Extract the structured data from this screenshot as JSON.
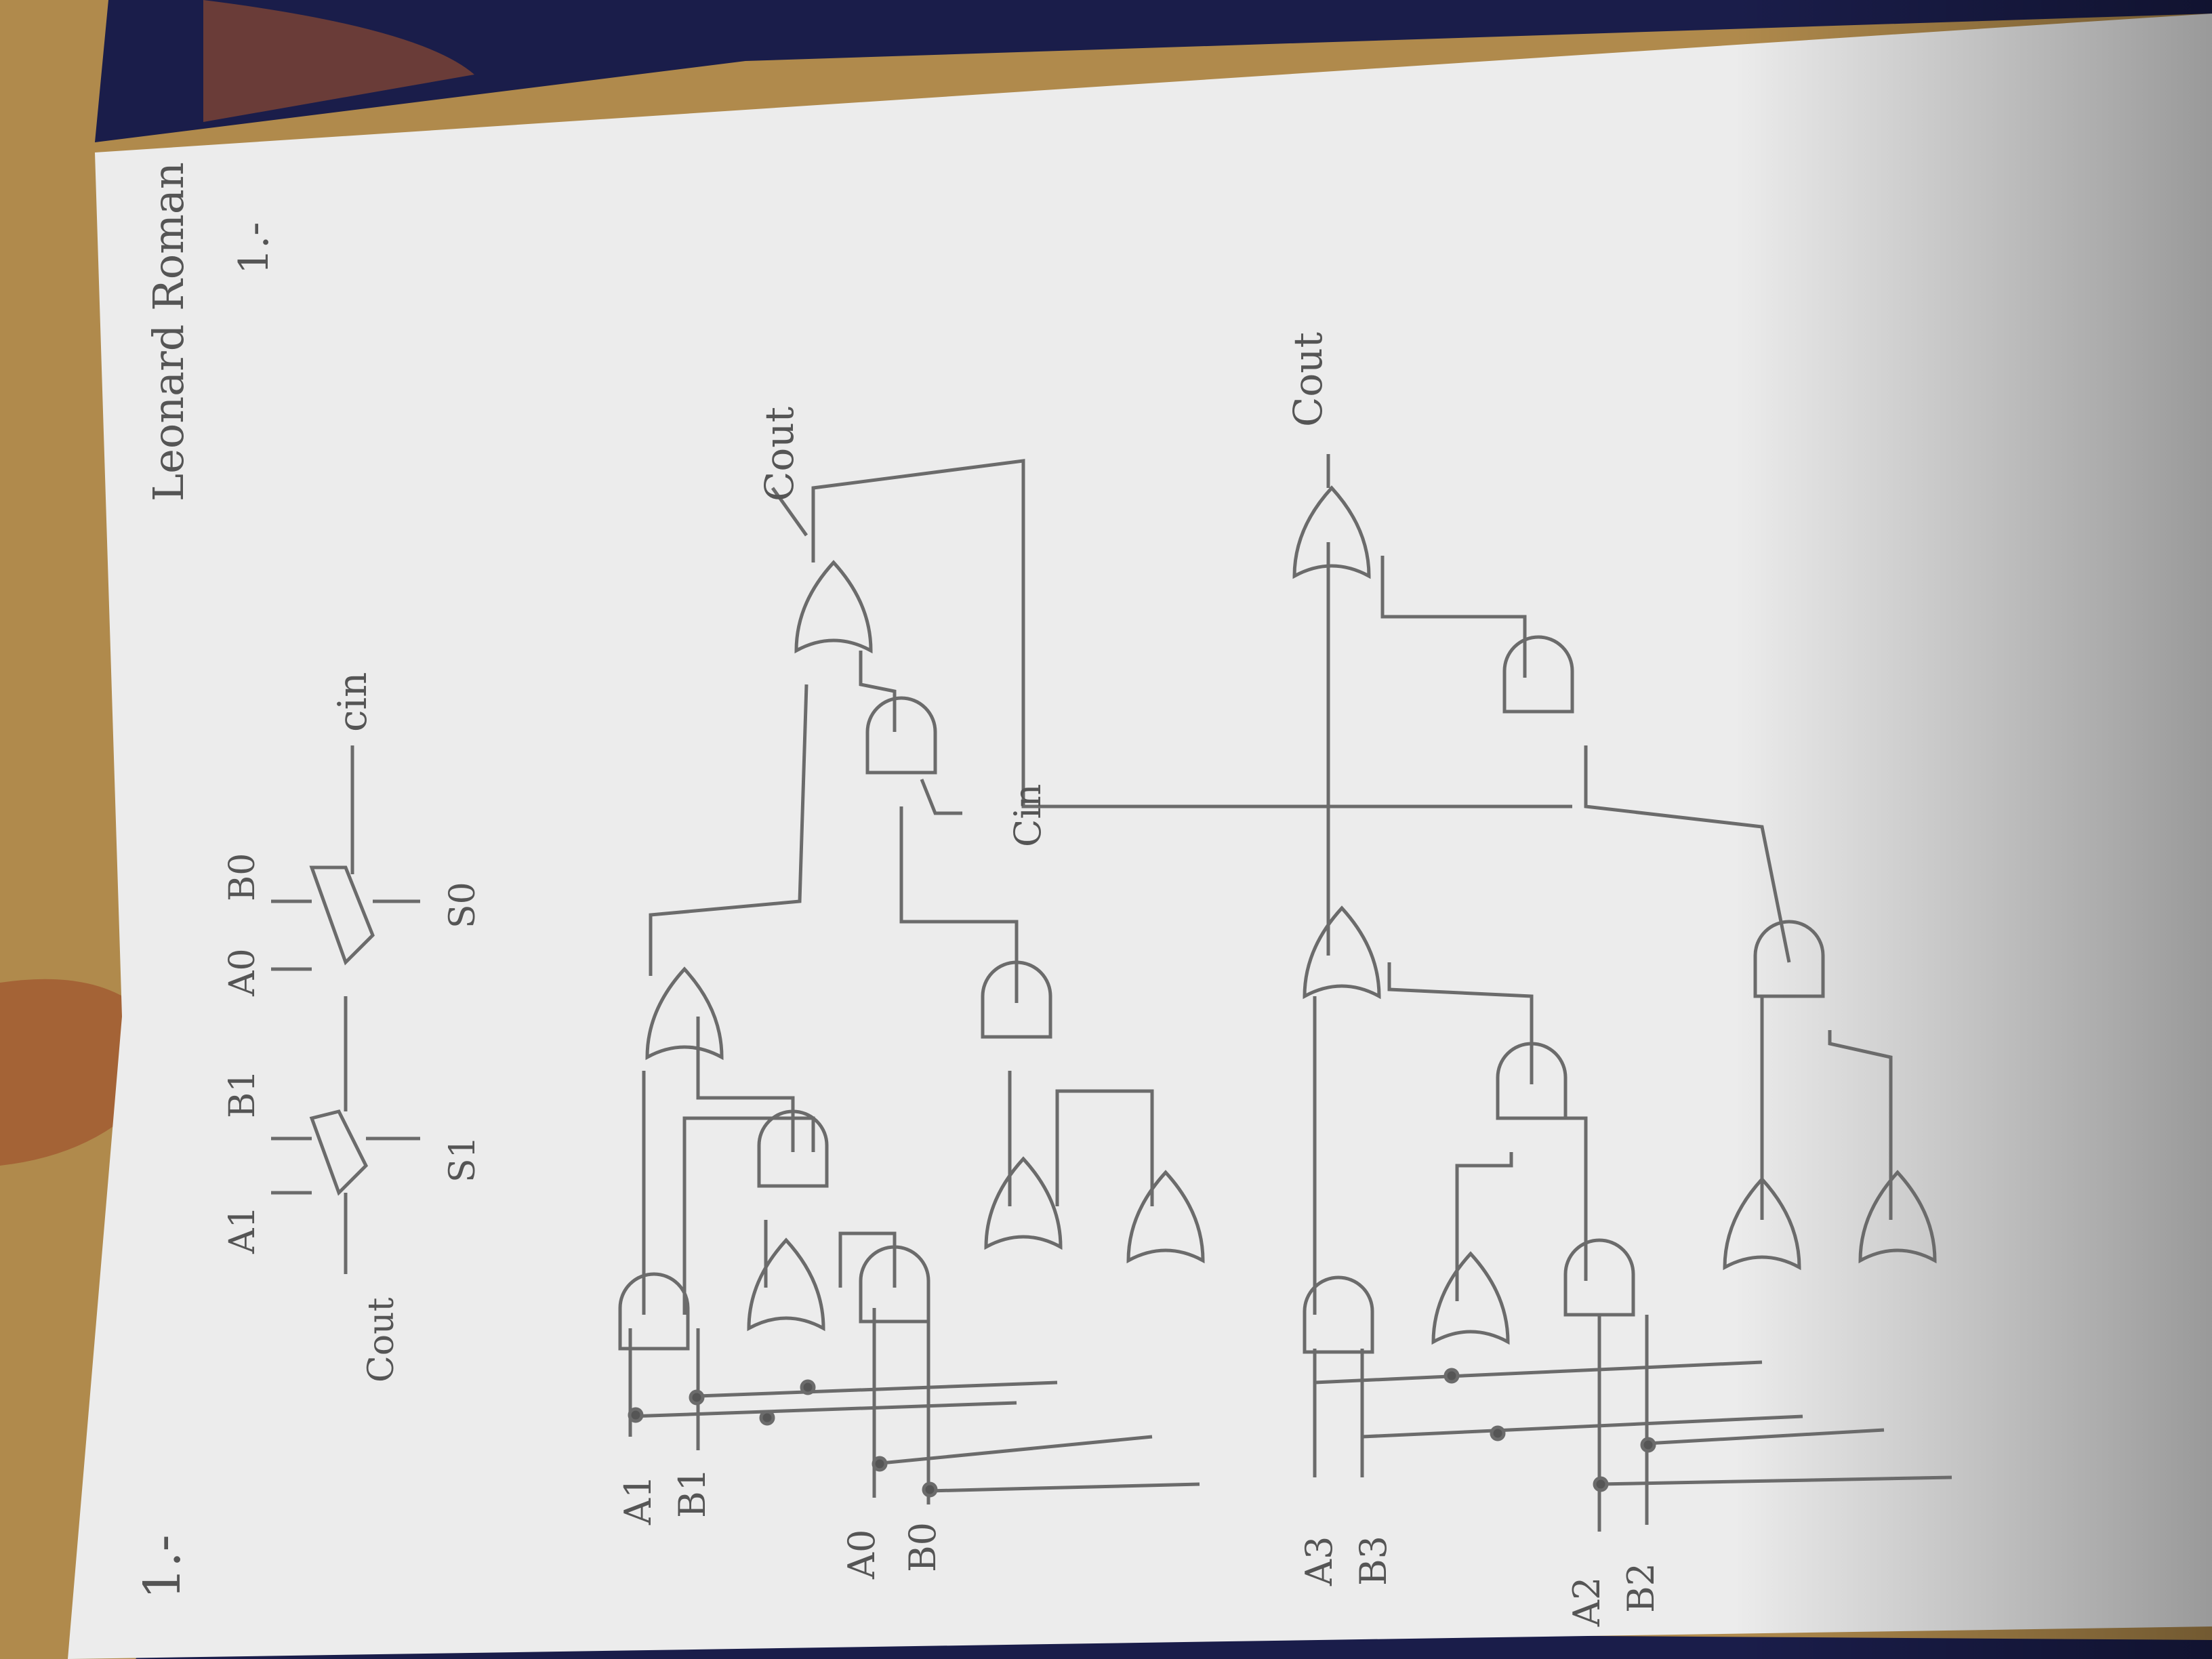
{
  "header": {
    "author": "Leonard Roman",
    "page_mark": "1.-",
    "problem_number": "1.-"
  },
  "block_diagram": {
    "inputs_top": [
      "A1",
      "B1",
      "A0",
      "B0"
    ],
    "cin_label": "cin",
    "cout_label": "Cout",
    "outputs": [
      "S1",
      "S0"
    ]
  },
  "circuit_upper": {
    "inputs": [
      {
        "name": "A1",
        "label": "A1"
      },
      {
        "name": "B1",
        "label": "B1"
      },
      {
        "name": "A0",
        "label": "A0"
      },
      {
        "name": "B0",
        "label": "B0"
      }
    ],
    "cin_label": "Cin",
    "cout_label": "Cout"
  },
  "circuit_lower": {
    "inputs": [
      {
        "name": "A3",
        "label": "A3"
      },
      {
        "name": "B3",
        "label": "B3"
      },
      {
        "name": "A2",
        "label": "A2"
      },
      {
        "name": "B2",
        "label": "B2"
      }
    ],
    "cout_label": "Cout"
  },
  "colors": {
    "paper": "#ececec",
    "pencil": "#6b6b6b",
    "table": "#b08a4c",
    "cloth": "#1a1d4a"
  }
}
